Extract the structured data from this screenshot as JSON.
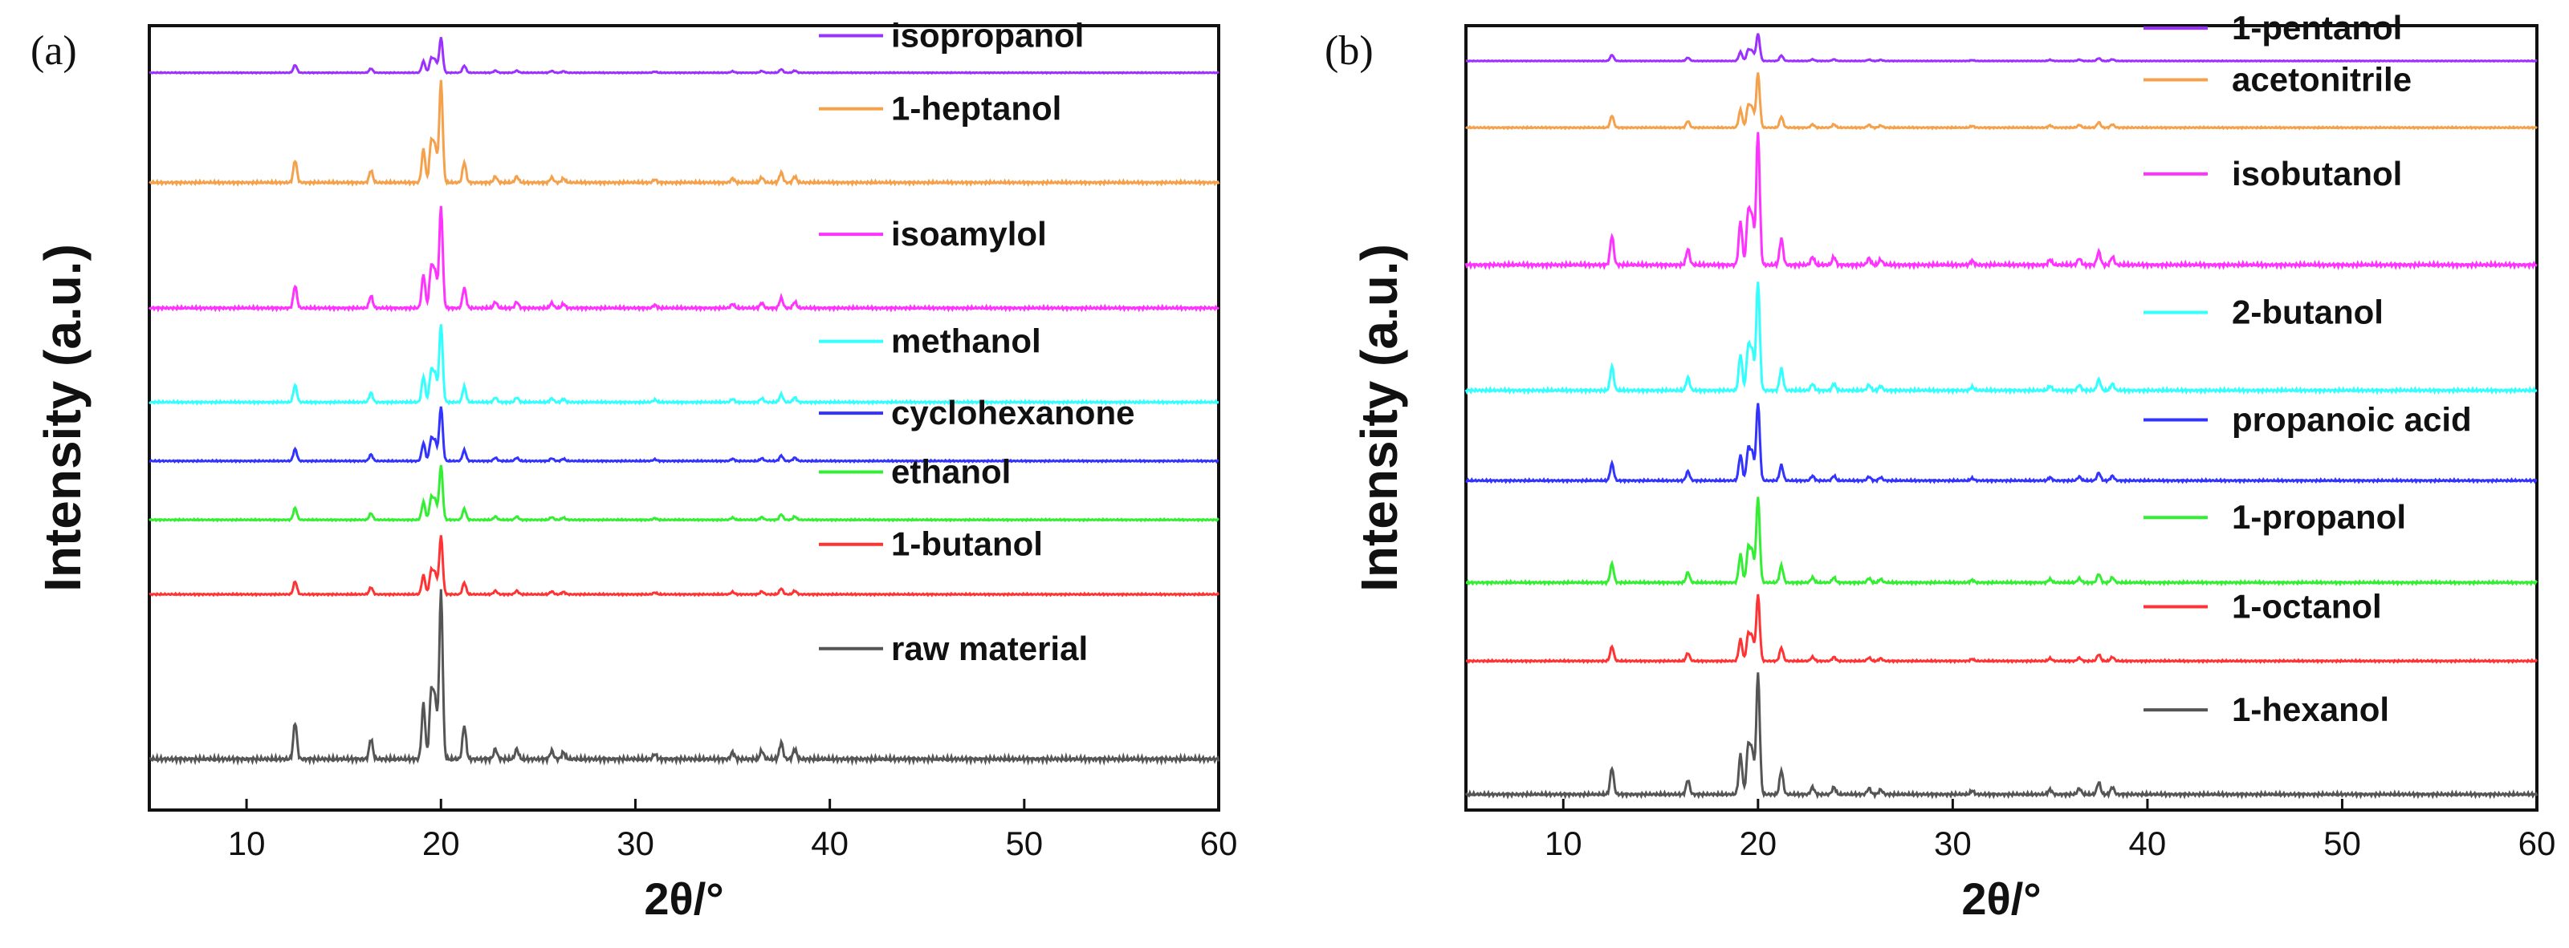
{
  "chart_data": [
    {
      "type": "line",
      "panel_label": "(a)",
      "xlabel": "2θ/°",
      "ylabel": "Intensity (a.u.)",
      "xlim": [
        5,
        60
      ],
      "xticks": [
        10,
        20,
        30,
        40,
        50,
        60
      ],
      "peaks_2theta": [
        12.5,
        16.4,
        19.1,
        19.5,
        19.7,
        20.0,
        21.2,
        22.8,
        23.9,
        25.7,
        26.3,
        31.0,
        35.0,
        36.5,
        37.5,
        38.2
      ],
      "series": [
        {
          "name": "isopropanol",
          "color": "#9b30ff",
          "offset": 0.94,
          "scale": 0.045
        },
        {
          "name": "1-heptanol",
          "color": "#f5a04a",
          "offset": 0.8,
          "scale": 0.13
        },
        {
          "name": "isoamylol",
          "color": "#ff33ff",
          "offset": 0.64,
          "scale": 0.13
        },
        {
          "name": "methanol",
          "color": "#33ffff",
          "offset": 0.52,
          "scale": 0.1
        },
        {
          "name": "cyclohexanone",
          "color": "#3333ff",
          "offset": 0.445,
          "scale": 0.07
        },
        {
          "name": "ethanol",
          "color": "#33ee33",
          "offset": 0.37,
          "scale": 0.07
        },
        {
          "name": "1-butanol",
          "color": "#ff3333",
          "offset": 0.275,
          "scale": 0.075
        },
        {
          "name": "raw material",
          "color": "#555555",
          "offset": 0.065,
          "scale": 0.215
        }
      ]
    },
    {
      "type": "line",
      "panel_label": "(b)",
      "xlabel": "2θ/°",
      "ylabel": "Intensity (a.u.)",
      "xlim": [
        5,
        60
      ],
      "xticks": [
        10,
        20,
        30,
        40,
        50,
        60
      ],
      "peaks_2theta": [
        12.5,
        16.4,
        19.1,
        19.5,
        19.7,
        20.0,
        21.2,
        22.8,
        23.9,
        25.7,
        26.3,
        31.0,
        35.0,
        36.5,
        37.5,
        38.2
      ],
      "series": [
        {
          "name": "1-pentanol",
          "color": "#9b30ff",
          "offset": 0.955,
          "scale": 0.035
        },
        {
          "name": "acetonitrile",
          "color": "#f5a04a",
          "offset": 0.87,
          "scale": 0.07
        },
        {
          "name": "isobutanol",
          "color": "#ff33ff",
          "offset": 0.695,
          "scale": 0.17
        },
        {
          "name": "2-butanol",
          "color": "#33ffff",
          "offset": 0.535,
          "scale": 0.14
        },
        {
          "name": "propanoic acid",
          "color": "#3333ff",
          "offset": 0.42,
          "scale": 0.1
        },
        {
          "name": "1-propanol",
          "color": "#33ee33",
          "offset": 0.29,
          "scale": 0.11
        },
        {
          "name": "1-octanol",
          "color": "#ff3333",
          "offset": 0.19,
          "scale": 0.085
        },
        {
          "name": "1-hexanol",
          "color": "#555555",
          "offset": 0.02,
          "scale": 0.155
        }
      ]
    }
  ]
}
